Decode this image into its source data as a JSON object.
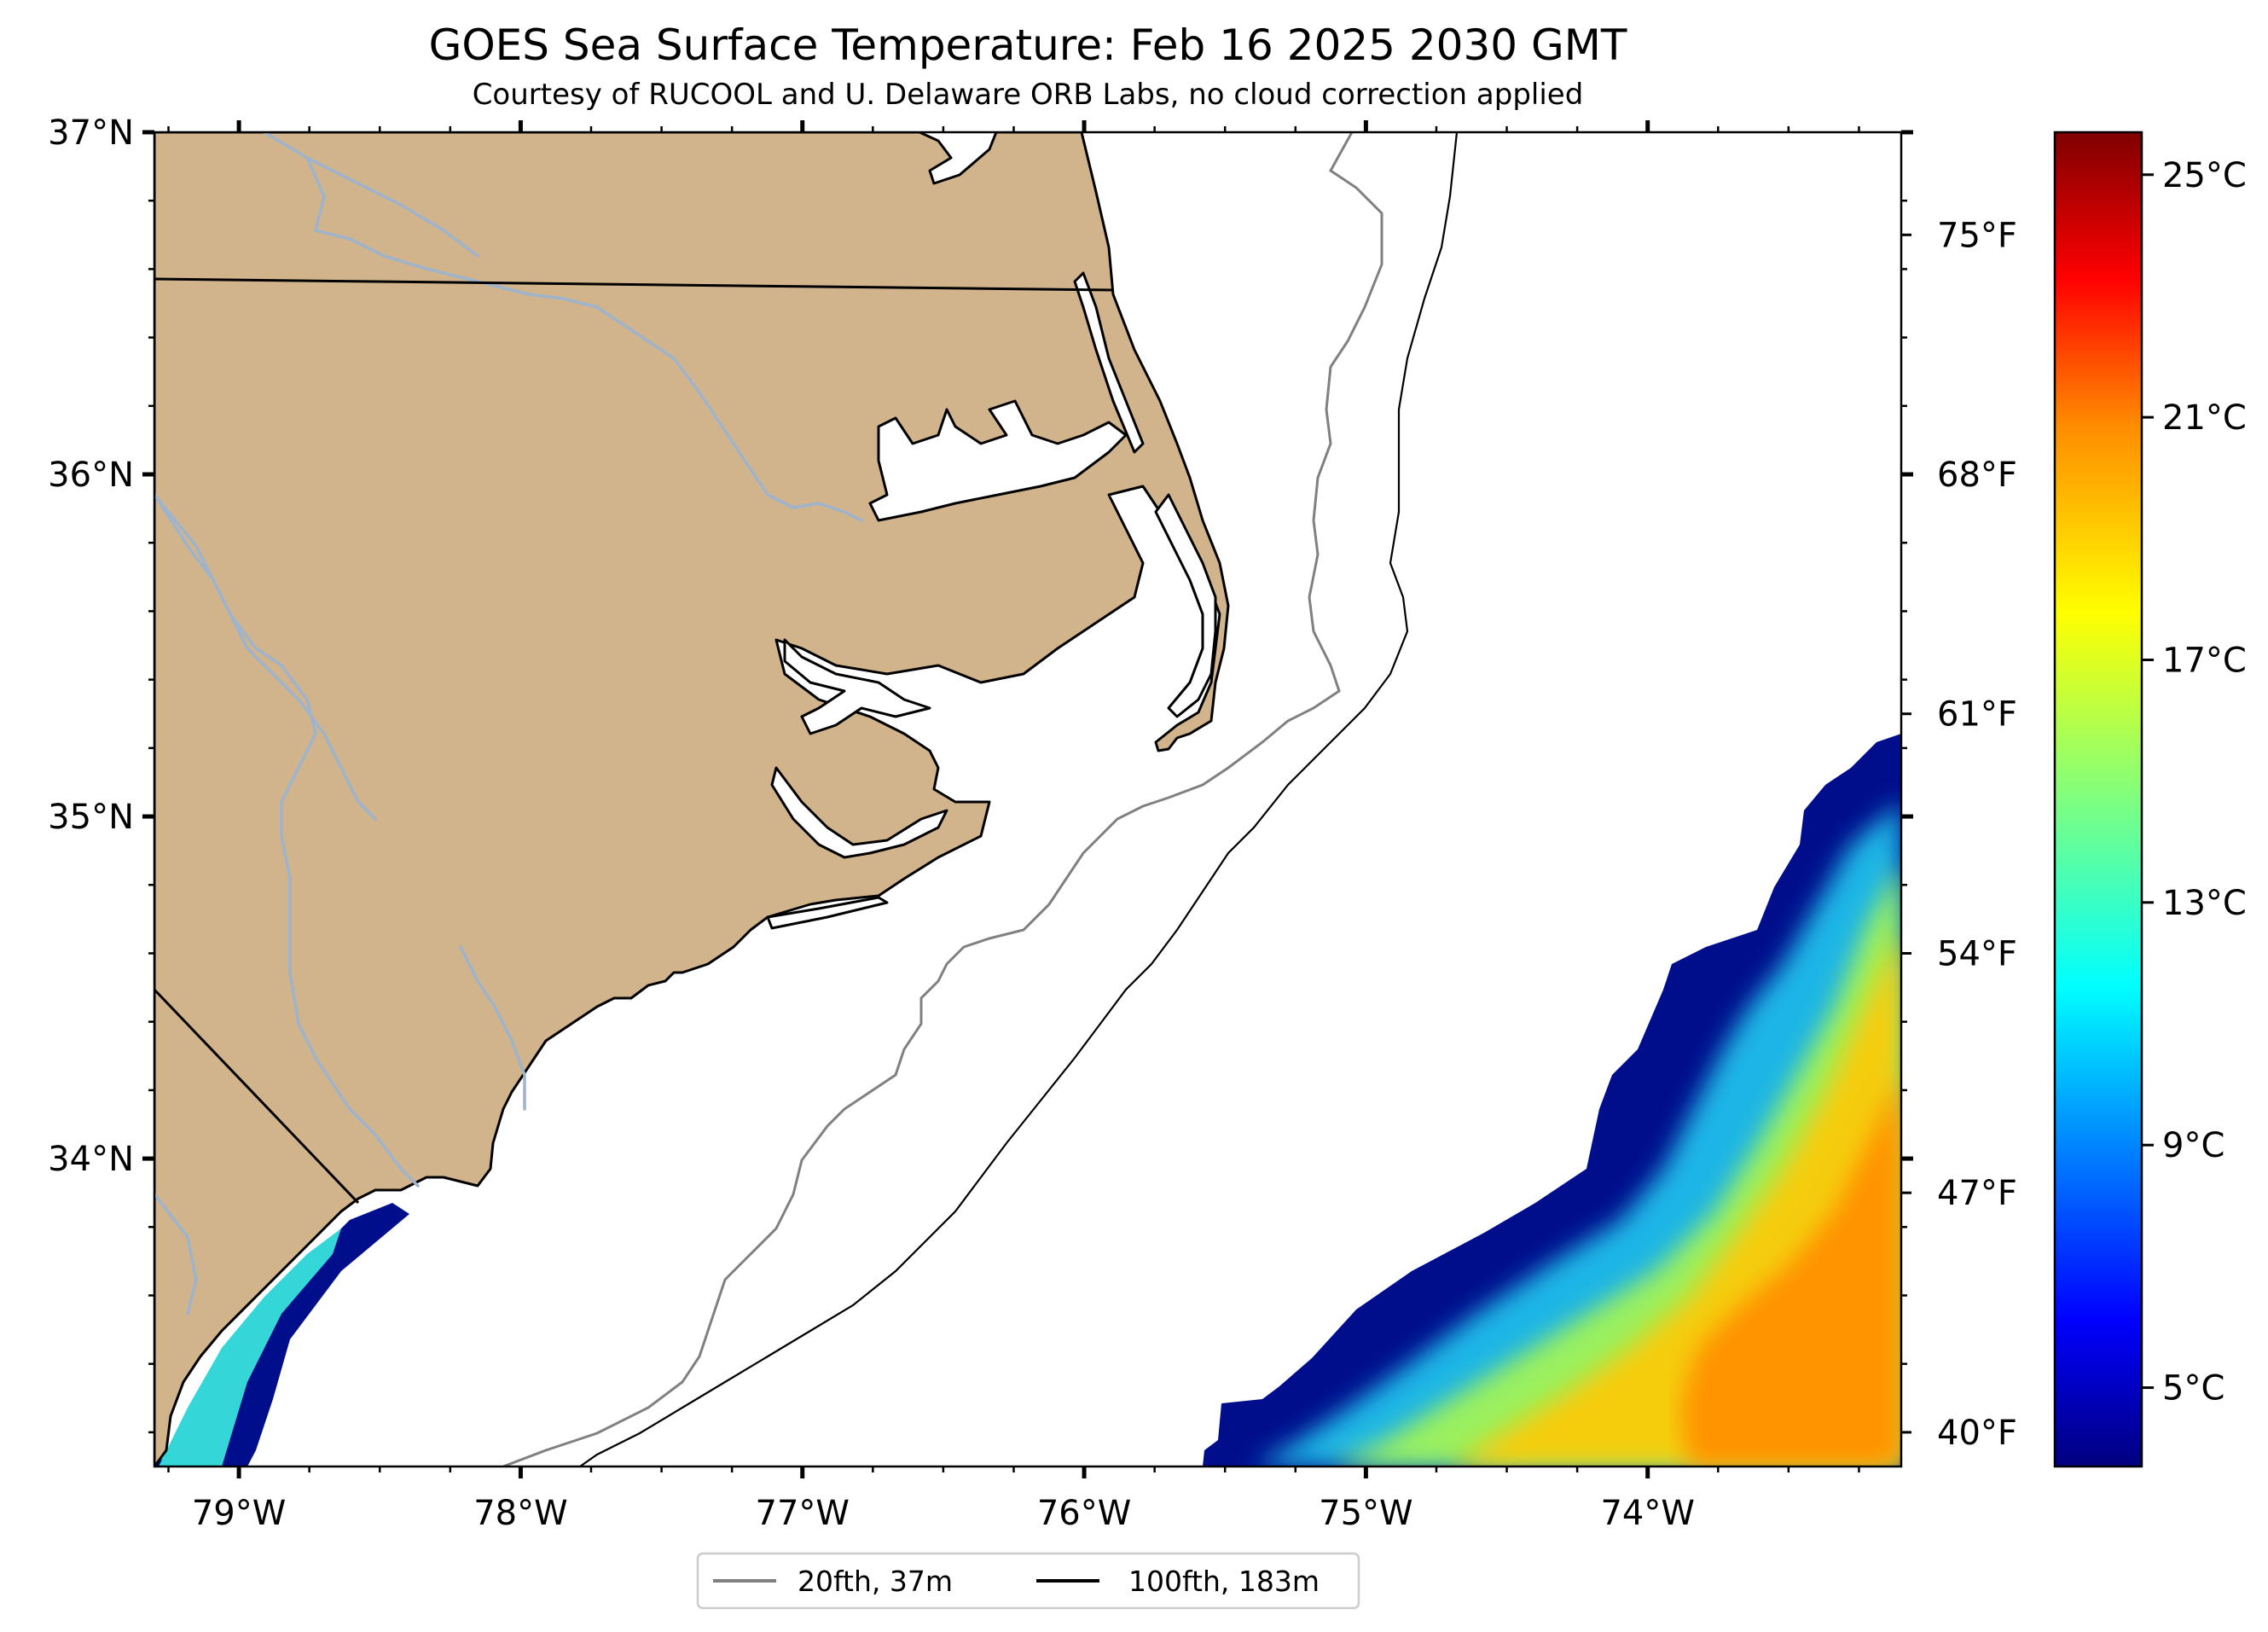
{
  "title": "GOES Sea Surface Temperature: Feb 16 2025 2030 GMT",
  "subtitle": "Courtesy of RUCOOL and U. Delaware ORB Labs, no cloud correction applied",
  "map": {
    "extent": {
      "lon_min": -79.3,
      "lon_max": -73.1,
      "lat_min": 33.1,
      "lat_max": 37.0
    },
    "land_color": "#d2b48c",
    "water_color": "#ffffff",
    "river_color": "#9eb3cc",
    "lat_ticks": [
      {
        "value": 37,
        "label": "37°N"
      },
      {
        "value": 36,
        "label": "36°N"
      },
      {
        "value": 35,
        "label": "35°N"
      },
      {
        "value": 34,
        "label": "34°N"
      }
    ],
    "lon_ticks": [
      {
        "value": -79,
        "label": "79°W"
      },
      {
        "value": -78,
        "label": "78°W"
      },
      {
        "value": -77,
        "label": "77°W"
      },
      {
        "value": -76,
        "label": "76°W"
      },
      {
        "value": -75,
        "label": "75°W"
      },
      {
        "value": -74,
        "label": "74°W"
      }
    ],
    "fahrenheit_ticks": [
      {
        "value": 75,
        "label": "75°F"
      },
      {
        "value": 68,
        "label": "68°F"
      },
      {
        "value": 61,
        "label": "61°F"
      },
      {
        "value": 54,
        "label": "54°F"
      },
      {
        "value": 47,
        "label": "47°F"
      },
      {
        "value": 40,
        "label": "40°F"
      }
    ],
    "fahrenheit_range": [
      39,
      78
    ]
  },
  "colorbar": {
    "range_c": [
      3.7,
      25.7
    ],
    "colormap": "jet",
    "ticks": [
      {
        "value": 25,
        "label": "25°C"
      },
      {
        "value": 21,
        "label": "21°C"
      },
      {
        "value": 17,
        "label": "17°C"
      },
      {
        "value": 13,
        "label": "13°C"
      },
      {
        "value": 9,
        "label": "9°C"
      },
      {
        "value": 5,
        "label": "5°C"
      }
    ]
  },
  "legend": {
    "items": [
      {
        "label": "20fth, 37m",
        "color": "#808080"
      },
      {
        "label": "100fth, 183m",
        "color": "#000000"
      }
    ]
  }
}
